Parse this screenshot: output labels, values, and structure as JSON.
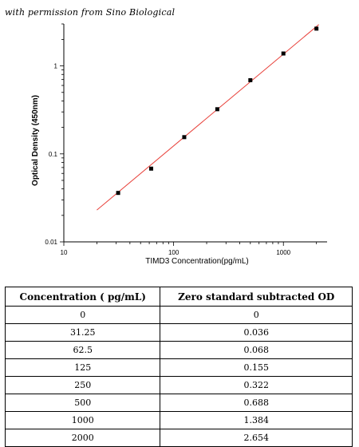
{
  "permission_text": "with permission from Sino Biological",
  "chart_data": {
    "type": "scatter",
    "xlabel": "TIMD3  Concentration(pg/mL)",
    "ylabel": "Optical Density (450nm)",
    "x_scale": "log",
    "y_scale": "log",
    "xlim": [
      10,
      2500
    ],
    "ylim": [
      0.01,
      3
    ],
    "x_ticks": [
      {
        "value": 10,
        "label": "10"
      },
      {
        "value": 100,
        "label": "100"
      },
      {
        "value": 1000,
        "label": "1000"
      }
    ],
    "y_ticks": [
      {
        "value": 0.01,
        "label": "0.01"
      },
      {
        "value": 0.1,
        "label": "0.1"
      },
      {
        "value": 1,
        "label": "1"
      }
    ],
    "points": {
      "x": [
        31.25,
        62.5,
        125,
        250,
        500,
        1000,
        2000
      ],
      "y": [
        0.036,
        0.068,
        0.155,
        0.322,
        0.688,
        1.384,
        2.654
      ]
    },
    "fit_line": {
      "x": [
        20,
        2100
      ],
      "y": [
        0.023,
        2.95
      ],
      "color": "#e8403a"
    },
    "marker_color": "#000000",
    "grid": false
  },
  "table": {
    "headers": [
      "Concentration ( pg/mL)",
      "Zero standard subtracted OD"
    ],
    "rows": [
      [
        "0",
        "0"
      ],
      [
        "31.25",
        "0.036"
      ],
      [
        "62.5",
        "0.068"
      ],
      [
        "125",
        "0.155"
      ],
      [
        "250",
        "0.322"
      ],
      [
        "500",
        "0.688"
      ],
      [
        "1000",
        "1.384"
      ],
      [
        "2000",
        "2.654"
      ]
    ]
  }
}
